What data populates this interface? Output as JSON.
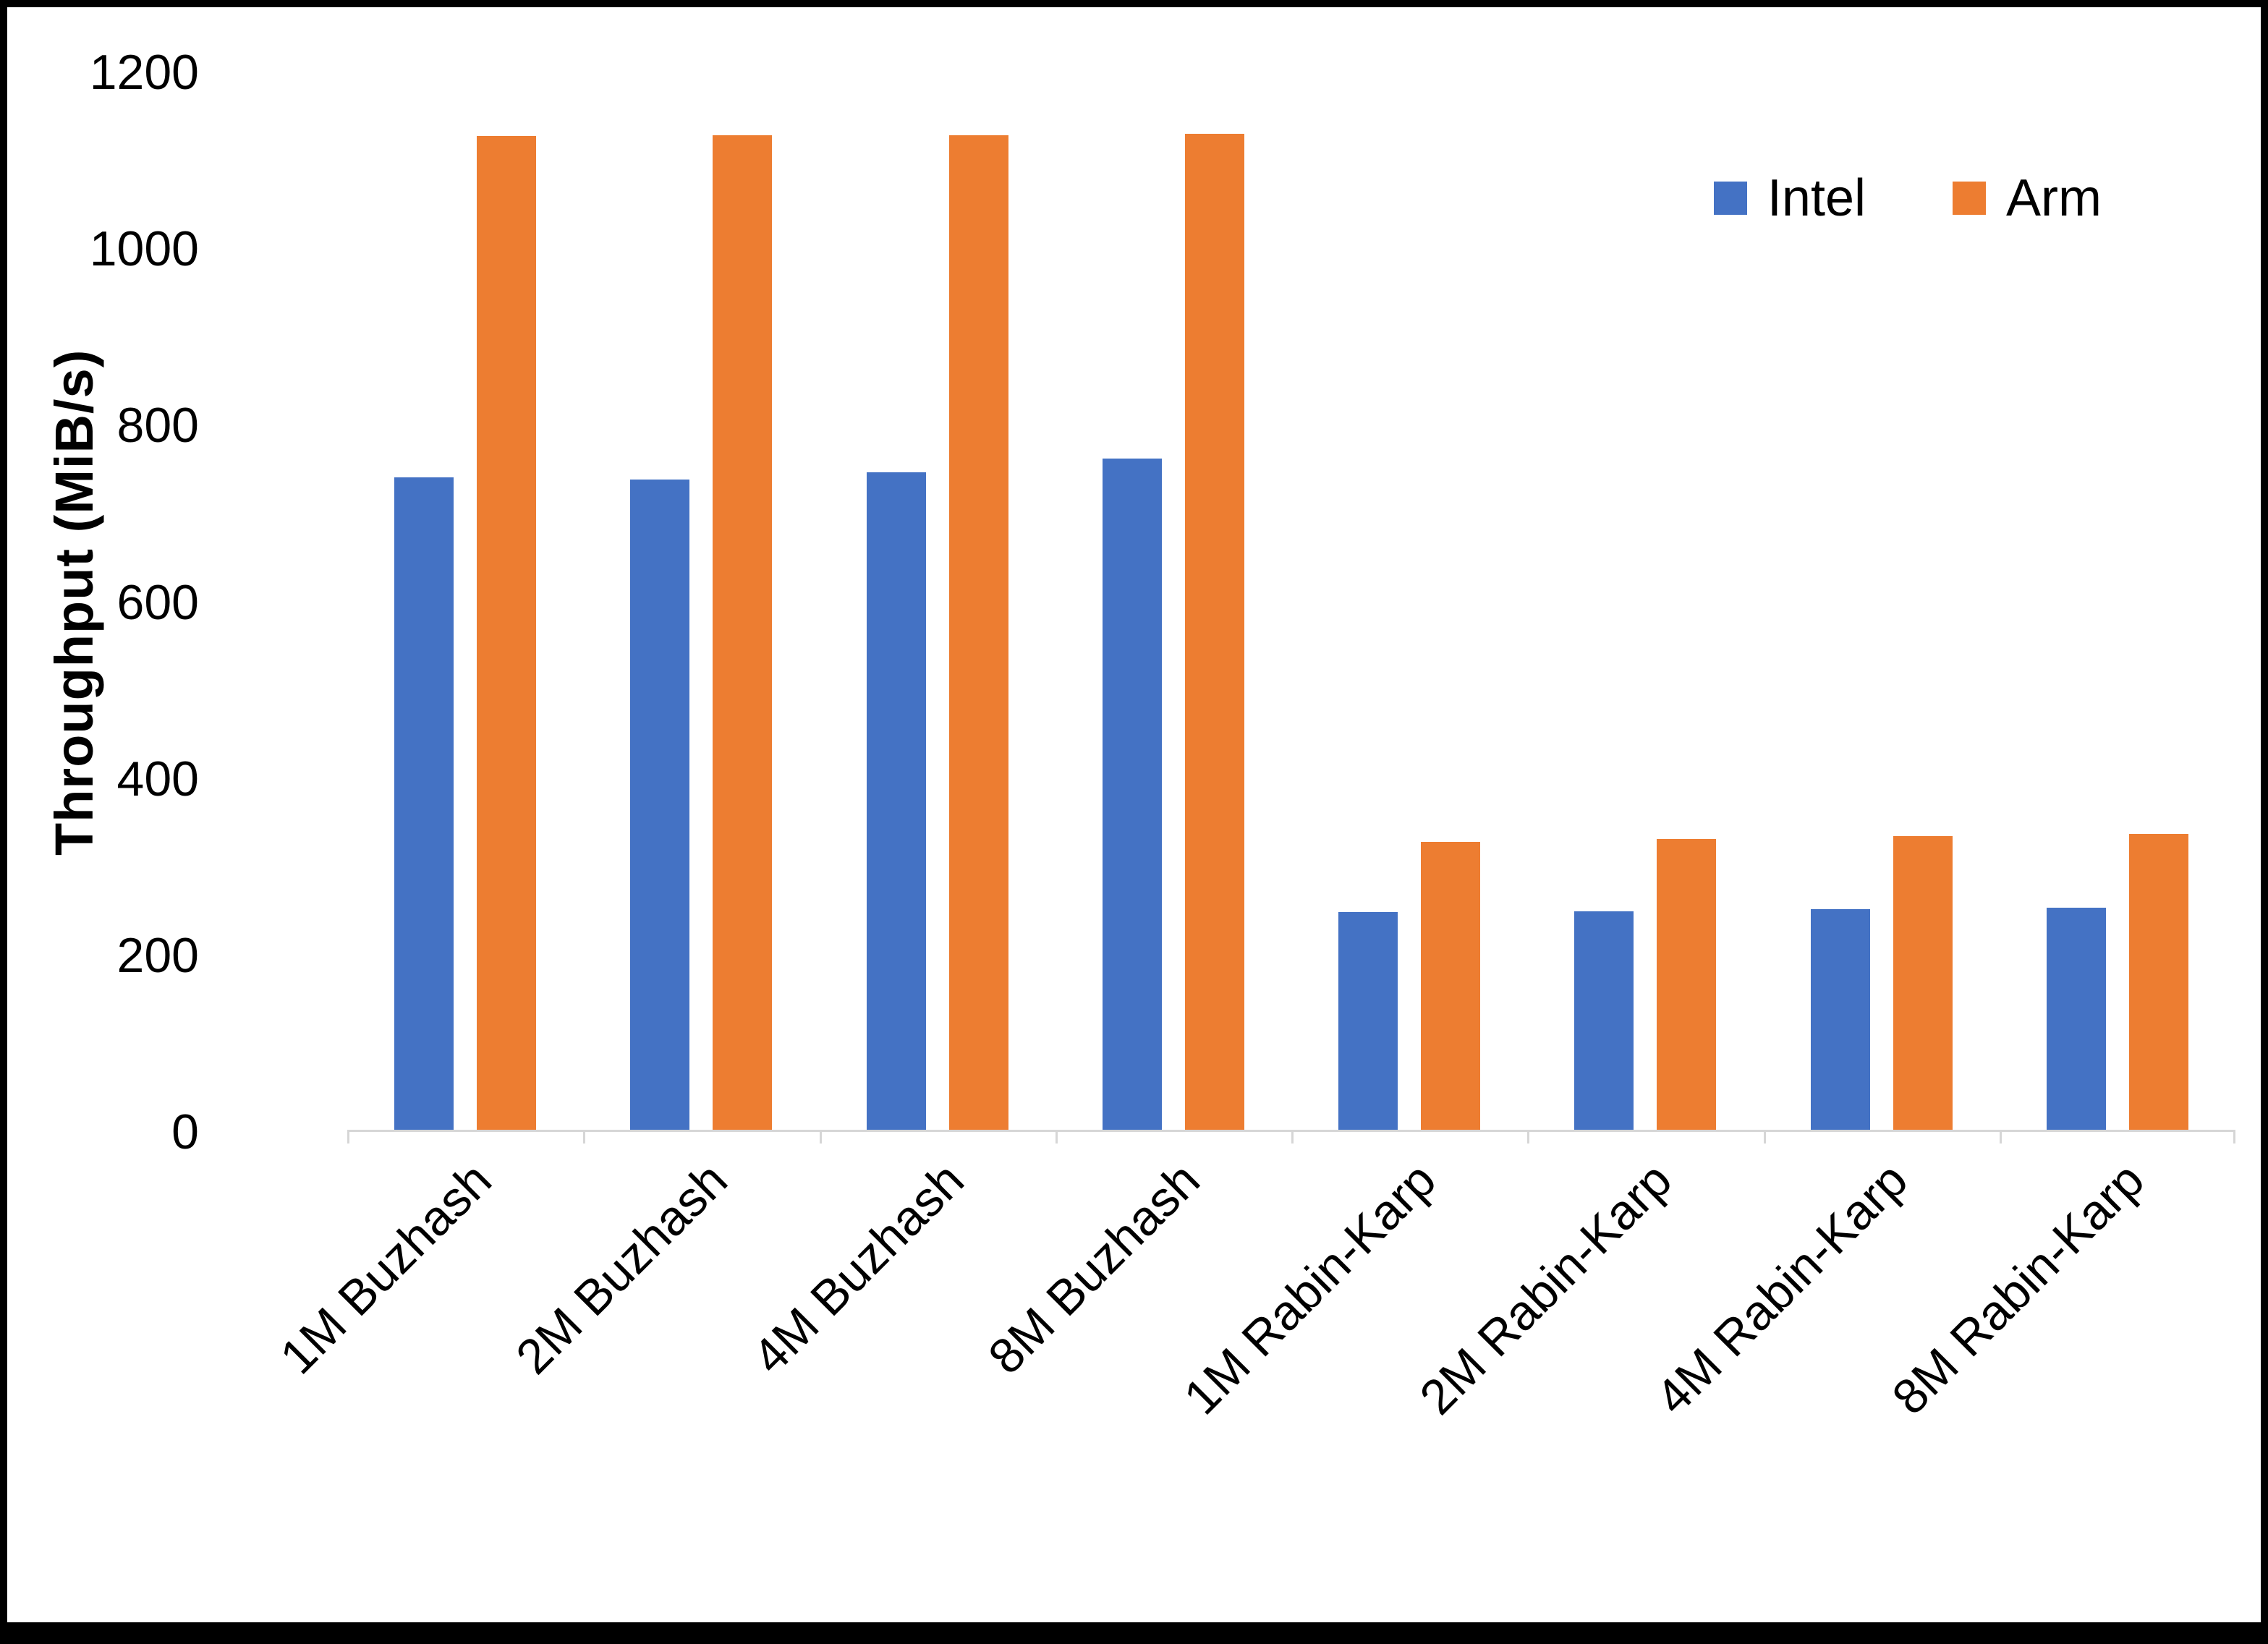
{
  "chart_data": {
    "type": "bar",
    "title": "",
    "xlabel": "",
    "ylabel": "Throughput (MiB/s)",
    "ylim": [
      0,
      1200
    ],
    "yticks": [
      0,
      200,
      400,
      600,
      800,
      1000,
      1200
    ],
    "grid": false,
    "legend_position": "top-right",
    "categories": [
      "1M Buzhash",
      "2M Buzhash",
      "4M Buzhash",
      "8M Buzhash",
      "1M Rabin-Karp",
      "2M Rabin-Karp",
      "4M Rabin-Karp",
      "8M Rabin-Karp"
    ],
    "series": [
      {
        "name": "Intel",
        "color": "#4472C4",
        "values": [
          740,
          738,
          746,
          762,
          247,
          248,
          250,
          252
        ]
      },
      {
        "name": "Arm",
        "color": "#ED7D31",
        "values": [
          1128,
          1129,
          1129,
          1130,
          327,
          330,
          333,
          336
        ]
      }
    ]
  },
  "colors": {
    "axis_line": "#d6d6d6",
    "text": "#000000",
    "background": "#ffffff",
    "frame_border": "#000000"
  }
}
